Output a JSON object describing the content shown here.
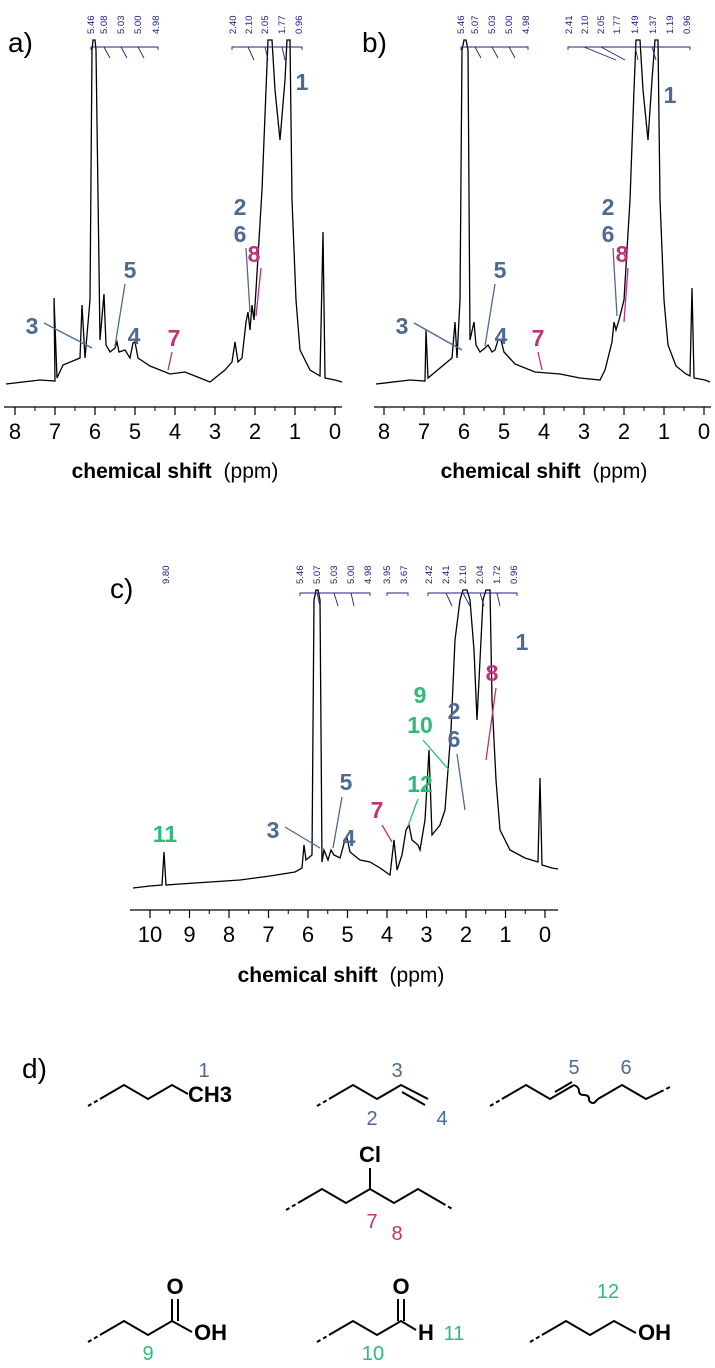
{
  "colors": {
    "blue": "#4d6a93",
    "pink": "#c0317a",
    "green": "#2dbb78",
    "integral": "#1a237e",
    "trace": "#000000"
  },
  "chart_data": [
    {
      "type": "line",
      "panel_label": "a)",
      "xlabel_bold": "chemical shift",
      "xlabel_unit": "(ppm)",
      "xlim": [
        8.3,
        -0.4
      ],
      "x_ticks": [
        "8",
        "7",
        "6",
        "5",
        "4",
        "3",
        "2",
        "1",
        "0"
      ],
      "grid": false,
      "peak_labels": [
        "5.46",
        "5.08",
        "5.03",
        "5.00",
        "4.98",
        "2.40",
        "2.10",
        "2.05",
        "1.77",
        "0.96"
      ],
      "assignments": [
        {
          "label": "1",
          "color": "blue"
        },
        {
          "label": "2",
          "color": "blue"
        },
        {
          "label": "6",
          "color": "blue"
        },
        {
          "label": "8",
          "color": "pink"
        },
        {
          "label": "5",
          "color": "blue"
        },
        {
          "label": "3",
          "color": "blue"
        },
        {
          "label": "4",
          "color": "blue"
        },
        {
          "label": "7",
          "color": "pink"
        }
      ]
    },
    {
      "type": "line",
      "panel_label": "b)",
      "xlabel_bold": "chemical shift",
      "xlabel_unit": "(ppm)",
      "xlim": [
        8.3,
        -0.4
      ],
      "x_ticks": [
        "8",
        "7",
        "6",
        "5",
        "4",
        "3",
        "2",
        "1",
        "0"
      ],
      "grid": false,
      "peak_labels": [
        "5.46",
        "5.07",
        "5.03",
        "5.00",
        "4.98",
        "2.41",
        "2.10",
        "2.05",
        "1.77",
        "1.49",
        "1.37",
        "1.19",
        "0.96"
      ],
      "assignments": [
        {
          "label": "1",
          "color": "blue"
        },
        {
          "label": "2",
          "color": "blue"
        },
        {
          "label": "6",
          "color": "blue"
        },
        {
          "label": "8",
          "color": "pink"
        },
        {
          "label": "5",
          "color": "blue"
        },
        {
          "label": "3",
          "color": "blue"
        },
        {
          "label": "4",
          "color": "blue"
        },
        {
          "label": "7",
          "color": "pink"
        }
      ]
    },
    {
      "type": "line",
      "panel_label": "c)",
      "xlabel_bold": "chemical shift",
      "xlabel_unit": "(ppm)",
      "xlim": [
        10.6,
        -0.4
      ],
      "x_ticks": [
        "10",
        "9",
        "8",
        "7",
        "6",
        "5",
        "4",
        "3",
        "2",
        "1",
        "0"
      ],
      "grid": false,
      "peak_labels": [
        "9.80",
        "5.46",
        "5.07",
        "5.03",
        "5.00",
        "4.98",
        "3.95",
        "3.67",
        "2.42",
        "2.41",
        "2.10",
        "2.04",
        "1.72",
        "0.96"
      ],
      "assignments": [
        {
          "label": "1",
          "color": "blue"
        },
        {
          "label": "8",
          "color": "pink"
        },
        {
          "label": "9",
          "color": "green"
        },
        {
          "label": "10",
          "color": "green"
        },
        {
          "label": "2",
          "color": "blue"
        },
        {
          "label": "6",
          "color": "blue"
        },
        {
          "label": "12",
          "color": "green"
        },
        {
          "label": "5",
          "color": "blue"
        },
        {
          "label": "7",
          "color": "pink"
        },
        {
          "label": "3",
          "color": "blue"
        },
        {
          "label": "4",
          "color": "blue"
        },
        {
          "label": "11",
          "color": "green"
        }
      ]
    }
  ],
  "structures": {
    "panel_label": "d)",
    "s1": {
      "group": "CH3",
      "num": "1"
    },
    "s2": {
      "num_a": "3",
      "num_b": "2",
      "num_c": "4"
    },
    "s3": {
      "num_a": "5",
      "num_b": "6"
    },
    "s4": {
      "group": "Cl",
      "num_a": "7",
      "num_b": "8"
    },
    "s5": {
      "o": "O",
      "oh": "OH",
      "num": "9"
    },
    "s6": {
      "o": "O",
      "h": "H",
      "num_a": "10",
      "num_b": "11"
    },
    "s7": {
      "oh": "OH",
      "num": "12"
    }
  }
}
